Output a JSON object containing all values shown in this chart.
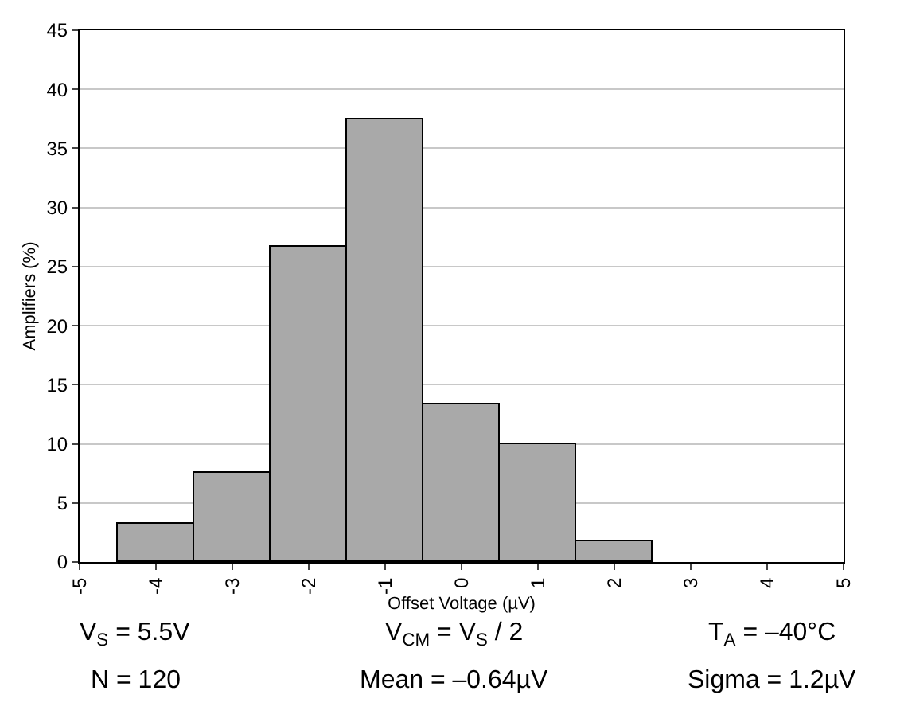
{
  "chart_data": {
    "type": "histogram",
    "xlabel": "Offset Voltage (µV)",
    "ylabel": "Amplifiers (%)",
    "bins": [
      -4.5,
      -3.5,
      -2.5,
      -1.5,
      -0.5,
      0.5,
      1.5,
      2.5
    ],
    "values": [
      3.3,
      7.5,
      26.7,
      37.5,
      13.3,
      10,
      1.7
    ],
    "color": "#a9a9a9",
    "xlim": [
      -5,
      5
    ],
    "xticks": [
      -5,
      -4,
      -3,
      -2,
      -1,
      0,
      1,
      2,
      3,
      4,
      5
    ],
    "ylim": [
      0,
      45
    ],
    "yticks": [
      0,
      5,
      10,
      15,
      20,
      25,
      30,
      35,
      40,
      45
    ],
    "grid": "y",
    "annotations": [
      "V$_{S}$ = 5.5V",
      "V$_{CM}$ = V$_{S}$ / 2",
      "T$_{A}$ = –40°C",
      "N = 120",
      "Mean = –0.64µV",
      "Sigma = 1.2µV"
    ]
  }
}
